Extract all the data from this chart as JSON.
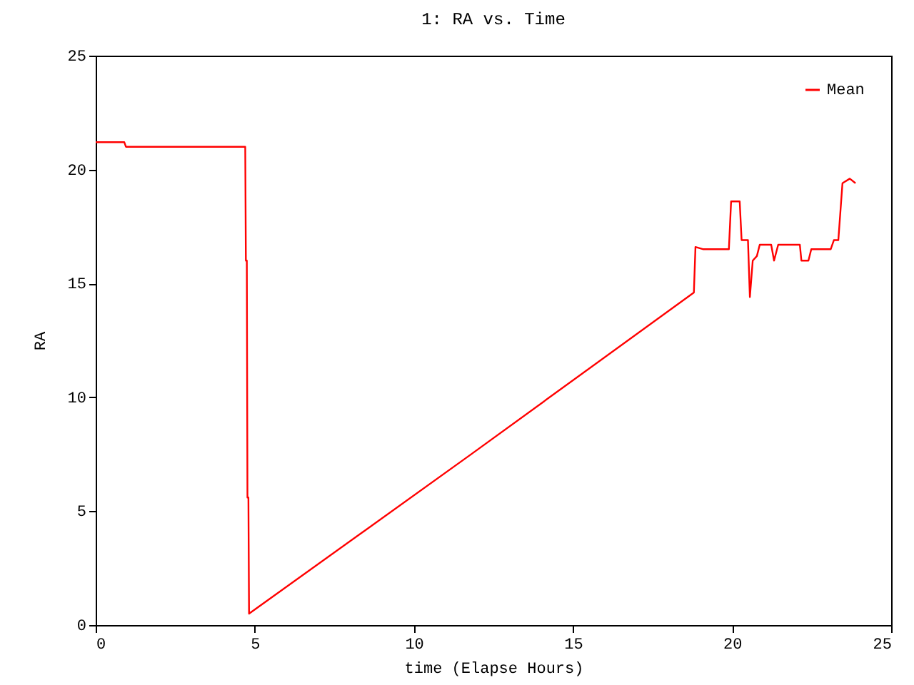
{
  "chart_data": {
    "type": "line",
    "title": "1: RA vs. Time",
    "xlabel": "time (Elapse Hours)",
    "ylabel": "RA",
    "x": [
      0,
      0.9,
      0.95,
      4.7,
      4.72,
      4.75,
      4.77,
      4.8,
      4.82,
      11.8,
      18.8,
      18.85,
      19.1,
      19.15,
      19.9,
      19.97,
      20.24,
      20.3,
      20.5,
      20.56,
      20.65,
      20.78,
      20.87,
      21.23,
      21.32,
      21.45,
      22.13,
      22.18,
      22.4,
      22.49,
      23.1,
      23.2,
      23.34,
      23.47,
      23.7,
      23.88
    ],
    "series": [
      {
        "name": "Mean",
        "color": "#ff0000",
        "values": [
          21.2,
          21.2,
          21.0,
          21.0,
          16.0,
          16.0,
          5.6,
          5.6,
          0.5,
          7.5,
          14.6,
          16.6,
          16.5,
          16.5,
          16.5,
          18.6,
          18.6,
          16.9,
          16.9,
          14.4,
          16.0,
          16.2,
          16.7,
          16.7,
          16.0,
          16.7,
          16.7,
          16.0,
          16.0,
          16.5,
          16.5,
          16.9,
          16.9,
          19.4,
          19.6,
          19.4
        ]
      }
    ],
    "xlim": [
      0,
      25
    ],
    "ylim": [
      0,
      25
    ],
    "xticks": [
      0,
      5,
      10,
      15,
      20,
      25
    ],
    "yticks": [
      0,
      5,
      10,
      15,
      20,
      25
    ],
    "legend": "top right"
  }
}
